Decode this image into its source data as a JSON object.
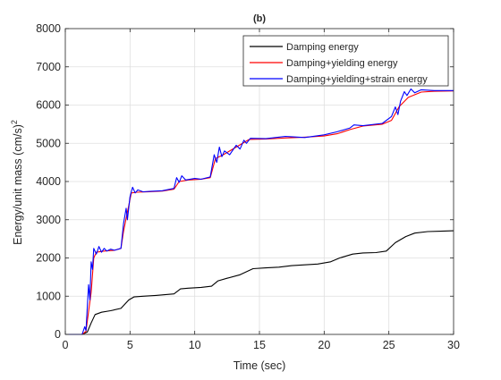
{
  "chart_data": {
    "type": "line",
    "title": "(b)",
    "xlabel": "Time (sec)",
    "ylabel": "Energy/unit mass (cm/s)",
    "ylabel_sup": "2",
    "xlim": [
      0,
      30
    ],
    "ylim": [
      0,
      8000
    ],
    "xticks": [
      0,
      5,
      10,
      15,
      20,
      25,
      30
    ],
    "yticks": [
      0,
      1000,
      2000,
      3000,
      4000,
      5000,
      6000,
      7000,
      8000
    ],
    "grid": true,
    "legend_position": "top-right",
    "series": [
      {
        "name": "Damping energy",
        "color": "#000000",
        "points": [
          [
            0,
            0
          ],
          [
            1.3,
            0
          ],
          [
            1.7,
            60
          ],
          [
            2.0,
            300
          ],
          [
            2.3,
            520
          ],
          [
            2.8,
            580
          ],
          [
            3.5,
            620
          ],
          [
            4.3,
            680
          ],
          [
            4.9,
            900
          ],
          [
            5.3,
            980
          ],
          [
            6.0,
            1000
          ],
          [
            7.0,
            1020
          ],
          [
            8.4,
            1060
          ],
          [
            8.9,
            1190
          ],
          [
            9.5,
            1210
          ],
          [
            10.5,
            1230
          ],
          [
            11.3,
            1260
          ],
          [
            11.8,
            1400
          ],
          [
            12.5,
            1470
          ],
          [
            13.5,
            1560
          ],
          [
            14.5,
            1720
          ],
          [
            15.5,
            1740
          ],
          [
            16.5,
            1760
          ],
          [
            17.5,
            1800
          ],
          [
            18.5,
            1820
          ],
          [
            19.5,
            1840
          ],
          [
            20.5,
            1900
          ],
          [
            21.2,
            2000
          ],
          [
            22.2,
            2100
          ],
          [
            23.0,
            2130
          ],
          [
            24.0,
            2140
          ],
          [
            24.8,
            2180
          ],
          [
            25.5,
            2400
          ],
          [
            26.3,
            2560
          ],
          [
            27.0,
            2650
          ],
          [
            28.0,
            2690
          ],
          [
            29.0,
            2700
          ],
          [
            30.0,
            2710
          ]
        ]
      },
      {
        "name": "Damping+yielding energy",
        "color": "#ff0000",
        "points": [
          [
            0,
            0
          ],
          [
            1.3,
            0
          ],
          [
            1.6,
            80
          ],
          [
            1.8,
            600
          ],
          [
            2.0,
            1100
          ],
          [
            2.2,
            2000
          ],
          [
            2.4,
            2150
          ],
          [
            3.0,
            2180
          ],
          [
            3.8,
            2200
          ],
          [
            4.3,
            2250
          ],
          [
            4.5,
            2700
          ],
          [
            4.8,
            3200
          ],
          [
            5.1,
            3700
          ],
          [
            5.5,
            3720
          ],
          [
            6.5,
            3730
          ],
          [
            7.5,
            3750
          ],
          [
            8.4,
            3800
          ],
          [
            8.8,
            4000
          ],
          [
            9.5,
            4040
          ],
          [
            10.5,
            4060
          ],
          [
            11.2,
            4100
          ],
          [
            11.6,
            4600
          ],
          [
            12.2,
            4700
          ],
          [
            13.2,
            4900
          ],
          [
            14.2,
            5100
          ],
          [
            15.5,
            5110
          ],
          [
            17.0,
            5140
          ],
          [
            18.5,
            5160
          ],
          [
            20.0,
            5190
          ],
          [
            21.0,
            5250
          ],
          [
            22.0,
            5360
          ],
          [
            23.0,
            5450
          ],
          [
            24.5,
            5500
          ],
          [
            25.2,
            5600
          ],
          [
            25.8,
            5960
          ],
          [
            26.5,
            6200
          ],
          [
            27.5,
            6340
          ],
          [
            28.5,
            6360
          ],
          [
            30.0,
            6370
          ]
        ]
      },
      {
        "name": "Damping+yielding+strain energy",
        "color": "#0000ff",
        "points": [
          [
            0,
            0
          ],
          [
            1.3,
            0
          ],
          [
            1.5,
            200
          ],
          [
            1.6,
            100
          ],
          [
            1.8,
            1300
          ],
          [
            1.9,
            900
          ],
          [
            2.0,
            1900
          ],
          [
            2.1,
            1700
          ],
          [
            2.2,
            2250
          ],
          [
            2.4,
            2100
          ],
          [
            2.6,
            2300
          ],
          [
            2.8,
            2150
          ],
          [
            3.0,
            2250
          ],
          [
            3.2,
            2180
          ],
          [
            3.5,
            2230
          ],
          [
            3.8,
            2200
          ],
          [
            4.3,
            2250
          ],
          [
            4.5,
            2900
          ],
          [
            4.7,
            3300
          ],
          [
            4.8,
            3000
          ],
          [
            5.0,
            3600
          ],
          [
            5.2,
            3850
          ],
          [
            5.4,
            3700
          ],
          [
            5.6,
            3780
          ],
          [
            6.0,
            3730
          ],
          [
            6.5,
            3740
          ],
          [
            7.5,
            3760
          ],
          [
            8.4,
            3820
          ],
          [
            8.6,
            4100
          ],
          [
            8.8,
            3980
          ],
          [
            9.0,
            4150
          ],
          [
            9.3,
            4040
          ],
          [
            10.0,
            4080
          ],
          [
            10.5,
            4060
          ],
          [
            11.2,
            4120
          ],
          [
            11.5,
            4700
          ],
          [
            11.7,
            4500
          ],
          [
            11.9,
            4900
          ],
          [
            12.1,
            4650
          ],
          [
            12.3,
            4800
          ],
          [
            12.7,
            4700
          ],
          [
            13.2,
            4950
          ],
          [
            13.5,
            4850
          ],
          [
            13.8,
            5080
          ],
          [
            14.0,
            5000
          ],
          [
            14.3,
            5130
          ],
          [
            15.5,
            5120
          ],
          [
            17.0,
            5180
          ],
          [
            18.5,
            5150
          ],
          [
            20.0,
            5220
          ],
          [
            21.0,
            5300
          ],
          [
            22.0,
            5400
          ],
          [
            22.3,
            5480
          ],
          [
            23.0,
            5460
          ],
          [
            24.5,
            5520
          ],
          [
            25.2,
            5700
          ],
          [
            25.5,
            5950
          ],
          [
            25.7,
            5750
          ],
          [
            25.9,
            6100
          ],
          [
            26.2,
            6350
          ],
          [
            26.4,
            6250
          ],
          [
            26.7,
            6420
          ],
          [
            27.0,
            6320
          ],
          [
            27.5,
            6400
          ],
          [
            28.5,
            6380
          ],
          [
            30.0,
            6380
          ]
        ]
      }
    ]
  }
}
